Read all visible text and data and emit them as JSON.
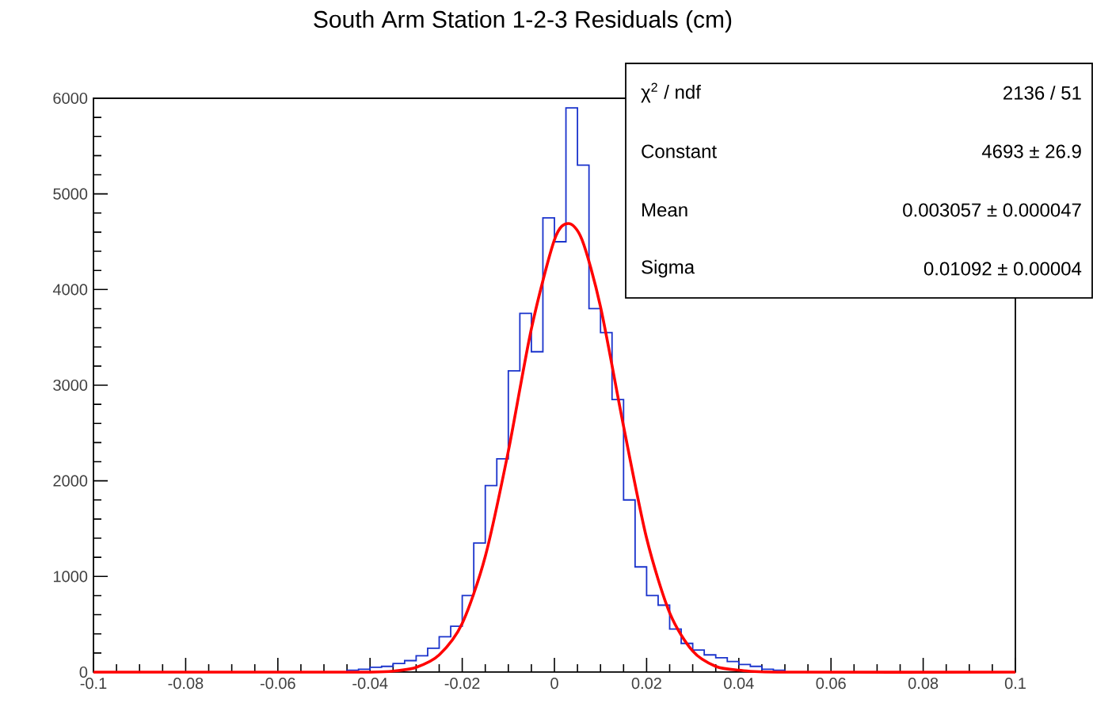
{
  "chart_data": {
    "type": "histogram",
    "title": "South Arm Station 1-2-3 Residuals (cm)",
    "series": [
      {
        "color": "#1a33cc",
        "bins": [
          -0.1,
          -0.0975,
          -0.095,
          -0.0925,
          -0.09,
          -0.0875,
          -0.085,
          -0.0825,
          -0.08,
          -0.0775,
          -0.075,
          -0.0725,
          -0.07,
          -0.0675,
          -0.065,
          -0.0625,
          -0.06,
          -0.0575,
          -0.055,
          -0.0525,
          -0.05,
          -0.0475,
          -0.045,
          -0.0425,
          -0.04,
          -0.0375,
          -0.035,
          -0.0325,
          -0.03,
          -0.0275,
          -0.025,
          -0.0225,
          -0.02,
          -0.0175,
          -0.015,
          -0.0125,
          -0.01,
          -0.0075,
          -0.005,
          -0.0025,
          0,
          0.0025,
          0.005,
          0.0075,
          0.01,
          0.0125,
          0.015,
          0.0175,
          0.02,
          0.0225,
          0.025,
          0.0275,
          0.03,
          0.0325,
          0.035,
          0.0375,
          0.04,
          0.0425,
          0.045,
          0.0475,
          0.05,
          0.0525,
          0.055,
          0.0575,
          0.06,
          0.0625,
          0.065,
          0.0675,
          0.07,
          0.0725,
          0.075,
          0.0775,
          0.08,
          0.0825,
          0.085,
          0.0875,
          0.09,
          0.0925,
          0.095,
          0.0975,
          0.1
        ],
        "values": [
          0,
          0,
          0,
          0,
          0,
          0,
          0,
          0,
          0,
          0,
          0,
          0,
          0,
          0,
          0,
          0,
          0,
          0,
          0,
          0,
          0,
          0,
          20,
          30,
          50,
          60,
          90,
          120,
          170,
          250,
          370,
          480,
          800,
          1350,
          1950,
          2230,
          3150,
          3750,
          3350,
          4750,
          4500,
          5900,
          5300,
          3800,
          3550,
          2850,
          1800,
          1100,
          800,
          700,
          450,
          300,
          230,
          180,
          150,
          110,
          80,
          60,
          30,
          20,
          0,
          0,
          0,
          0,
          0,
          0,
          0,
          0,
          0,
          0,
          0,
          0,
          0,
          0,
          0,
          0,
          0,
          0,
          0,
          0
        ]
      },
      {
        "type": "line",
        "color": "#ff0000",
        "x": [
          -0.1,
          -0.05,
          -0.04,
          -0.035,
          -0.03,
          -0.025,
          -0.02,
          -0.015,
          -0.01,
          -0.005,
          0,
          0.003,
          0.006,
          0.01,
          0.015,
          0.02,
          0.025,
          0.03,
          0.035,
          0.04,
          0.05,
          0.1
        ],
        "values": [
          0,
          0,
          0,
          10,
          50,
          180,
          510,
          1210,
          2310,
          3590,
          4520,
          4690,
          4520,
          3820,
          2570,
          1400,
          620,
          220,
          60,
          20,
          0,
          0
        ]
      }
    ],
    "xlim": [
      -0.1,
      0.1
    ],
    "ylim": [
      0,
      6000
    ],
    "xticks": [
      {
        "value": -0.1,
        "label": "-0.1"
      },
      -0.08,
      -0.06,
      -0.04,
      -0.02,
      0,
      0.02,
      0.04,
      0.06,
      0.08,
      {
        "value": 0.1,
        "label": "0.1"
      }
    ],
    "yticks": [
      0,
      1000,
      2000,
      3000,
      4000,
      5000,
      6000
    ],
    "grid": false,
    "annotations": [
      "χ$^{2}$ / ndf",
      "2136 / 51",
      "Constant",
      "4693 ± 26.9",
      "Mean",
      "0.003057 ± 0.000047",
      "Sigma",
      "0.01092 ± 0.00004"
    ]
  }
}
